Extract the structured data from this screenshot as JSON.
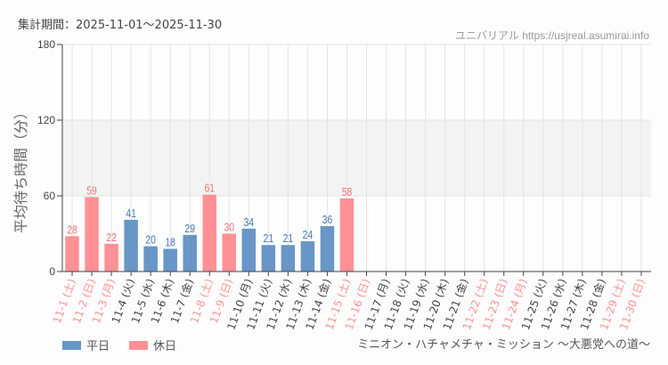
{
  "header": {
    "period": "集計期間：2025-11-01～2025-11-30",
    "credit": "ユニバリアル  https://usjreal.asumirai.info"
  },
  "legend": [
    {
      "label": "平日",
      "color": "#6896c6"
    },
    {
      "label": "休日",
      "color": "#ff9194"
    }
  ],
  "footer": {
    "attraction": "ミニオン・ハチャメチャ・ミッション ～大悪党への道～"
  },
  "colors": {
    "weekday": "#6896c6",
    "holiday": "#ff9194",
    "weekday_text": "#4a7bb0",
    "holiday_text": "#f0757c",
    "band": "#f3f3f3",
    "grid": "#e4e4e4",
    "axis": "#444444"
  },
  "chart_data": {
    "type": "bar",
    "title": "",
    "xlabel": "",
    "ylabel": "平均待ち時間（分）",
    "ylim": [
      0,
      180
    ],
    "yticks": [
      0,
      60,
      120,
      180
    ],
    "grid": true,
    "legend_position": "bottom-left",
    "categories": [
      "11-1 (土)",
      "11-2 (日)",
      "11-3 (月)",
      "11-4 (火)",
      "11-5 (水)",
      "11-6 (木)",
      "11-7 (金)",
      "11-8 (土)",
      "11-9 (日)",
      "11-10 (月)",
      "11-11 (火)",
      "11-12 (水)",
      "11-13 (木)",
      "11-14 (金)",
      "11-15 (土)",
      "11-16 (日)",
      "11-17 (月)",
      "11-18 (火)",
      "11-19 (水)",
      "11-20 (木)",
      "11-21 (金)",
      "11-22 (土)",
      "11-23 (日)",
      "11-24 (月)",
      "11-25 (火)",
      "11-26 (水)",
      "11-27 (木)",
      "11-28 (金)",
      "11-29 (土)",
      "11-30 (日)"
    ],
    "day_type": [
      "holiday",
      "holiday",
      "holiday",
      "weekday",
      "weekday",
      "weekday",
      "weekday",
      "holiday",
      "holiday",
      "weekday",
      "weekday",
      "weekday",
      "weekday",
      "weekday",
      "holiday",
      "holiday",
      "weekday",
      "weekday",
      "weekday",
      "weekday",
      "weekday",
      "holiday",
      "holiday",
      "holiday",
      "weekday",
      "weekday",
      "weekday",
      "weekday",
      "holiday",
      "holiday"
    ],
    "values": [
      28,
      59,
      22,
      41,
      20,
      18,
      29,
      61,
      30,
      34,
      21,
      21,
      24,
      36,
      58,
      null,
      null,
      null,
      null,
      null,
      null,
      null,
      null,
      null,
      null,
      null,
      null,
      null,
      null,
      null
    ],
    "series": [
      {
        "name": "平日",
        "color": "#6896c6"
      },
      {
        "name": "休日",
        "color": "#ff9194"
      }
    ]
  }
}
